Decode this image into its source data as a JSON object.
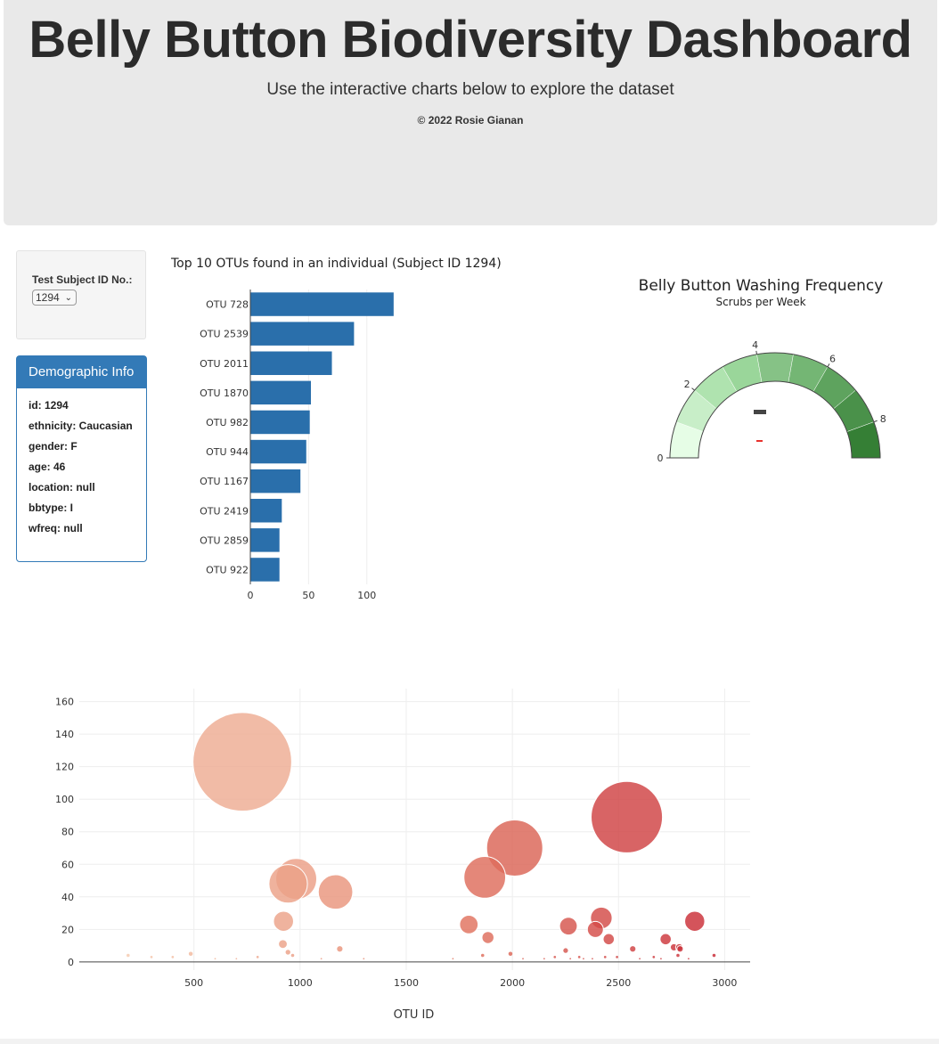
{
  "header": {
    "title": "Belly Button Biodiversity Dashboard",
    "subtitle": "Use the interactive charts below to explore the dataset",
    "copyright": "© 2022 Rosie Gianan"
  },
  "selector": {
    "label": "Test Subject ID No.:",
    "value": "1294"
  },
  "demographic": {
    "title": "Demographic Info",
    "rows": [
      "id: 1294",
      "ethnicity: Caucasian",
      "gender: F",
      "age: 46",
      "location: null",
      "bbtype: I",
      "wfreq: null"
    ]
  },
  "colors": {
    "bar": "#2a6fab",
    "panel": "#337ab7",
    "gauge_needle": "#444444",
    "gauge_marker": "#e8322d"
  },
  "chart_data": [
    {
      "type": "bar",
      "orientation": "horizontal",
      "title": "Top 10 OTUs found in an individual (Subject ID 1294)",
      "categories": [
        "OTU 728",
        "OTU 2539",
        "OTU 2011",
        "OTU 1870",
        "OTU 982",
        "OTU 944",
        "OTU 1167",
        "OTU 2419",
        "OTU 2859",
        "OTU 922"
      ],
      "values": [
        123,
        89,
        70,
        52,
        51,
        48,
        43,
        27,
        25,
        25
      ],
      "xlim": [
        0,
        130
      ],
      "xticks": [
        0,
        50,
        100
      ]
    },
    {
      "type": "gauge",
      "title": "Belly Button Washing Frequency",
      "subtitle": "Scrubs per Week",
      "range": [
        0,
        9
      ],
      "value": null,
      "tick_labels": [
        "0",
        "2",
        "4",
        "6",
        "8"
      ],
      "band_colors": [
        "#e6fde6",
        "#c8eec8",
        "#afe3af",
        "#9ad69a",
        "#86c286",
        "#74b674",
        "#5ea35e",
        "#4a914a",
        "#357f35"
      ]
    },
    {
      "type": "scatter",
      "subtype": "bubble",
      "xlabel": "OTU ID",
      "xlim": [
        -40,
        3120
      ],
      "ylim": [
        -5,
        168
      ],
      "xticks": [
        500,
        1000,
        1500,
        2000,
        2500,
        3000
      ],
      "yticks": [
        0,
        20,
        40,
        60,
        80,
        100,
        120,
        140,
        160
      ],
      "points": [
        {
          "x": 728,
          "y": 123
        },
        {
          "x": 2539,
          "y": 89
        },
        {
          "x": 2011,
          "y": 70
        },
        {
          "x": 1870,
          "y": 52
        },
        {
          "x": 982,
          "y": 51
        },
        {
          "x": 944,
          "y": 48
        },
        {
          "x": 1167,
          "y": 43
        },
        {
          "x": 2419,
          "y": 27
        },
        {
          "x": 2859,
          "y": 25
        },
        {
          "x": 922,
          "y": 25
        },
        {
          "x": 2264,
          "y": 22
        },
        {
          "x": 1795,
          "y": 23
        },
        {
          "x": 2391,
          "y": 20
        },
        {
          "x": 1885,
          "y": 15
        },
        {
          "x": 2722,
          "y": 14
        },
        {
          "x": 2454,
          "y": 14
        },
        {
          "x": 919,
          "y": 11
        },
        {
          "x": 2761,
          "y": 9
        },
        {
          "x": 2786,
          "y": 9
        },
        {
          "x": 2790,
          "y": 8
        },
        {
          "x": 1187,
          "y": 8
        },
        {
          "x": 2567,
          "y": 8
        },
        {
          "x": 2251,
          "y": 7
        },
        {
          "x": 943,
          "y": 6
        },
        {
          "x": 1991,
          "y": 5
        },
        {
          "x": 485,
          "y": 5
        },
        {
          "x": 965,
          "y": 4
        },
        {
          "x": 1860,
          "y": 4
        },
        {
          "x": 2950,
          "y": 4
        },
        {
          "x": 2780,
          "y": 4
        },
        {
          "x": 2666,
          "y": 3
        },
        {
          "x": 2493,
          "y": 3
        },
        {
          "x": 2315,
          "y": 3
        },
        {
          "x": 2437,
          "y": 3
        },
        {
          "x": 2200,
          "y": 3
        },
        {
          "x": 2150,
          "y": 2
        },
        {
          "x": 2273,
          "y": 2
        },
        {
          "x": 2335,
          "y": 2
        },
        {
          "x": 2377,
          "y": 2
        },
        {
          "x": 2600,
          "y": 2
        },
        {
          "x": 2700,
          "y": 2
        },
        {
          "x": 2830,
          "y": 2
        },
        {
          "x": 190,
          "y": 4
        },
        {
          "x": 300,
          "y": 3
        },
        {
          "x": 400,
          "y": 3
        },
        {
          "x": 600,
          "y": 2
        },
        {
          "x": 700,
          "y": 2
        },
        {
          "x": 800,
          "y": 3
        },
        {
          "x": 1100,
          "y": 2
        },
        {
          "x": 1300,
          "y": 2
        },
        {
          "x": 1720,
          "y": 2
        },
        {
          "x": 2050,
          "y": 2
        }
      ]
    }
  ]
}
